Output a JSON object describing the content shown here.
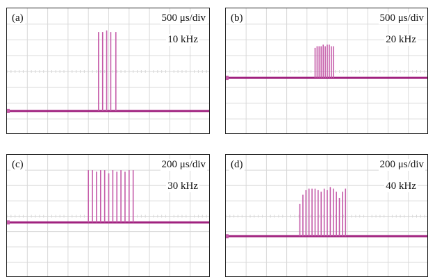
{
  "colors": {
    "trace": "#a0227f",
    "pulse": "#c45aa8",
    "grid": "#d8d8d8",
    "frame": "#222222"
  },
  "chart_data": [
    {
      "type": "line",
      "label": "(a)",
      "timebase": "500 μs/div",
      "frequency": "10 kHz",
      "xlim": [
        0,
        10
      ],
      "ylim": [
        0,
        8
      ],
      "baseline": 1.5,
      "grid": true,
      "pulses": [
        {
          "x": 4.5,
          "peak": 6.5
        },
        {
          "x": 4.7,
          "peak": 6.5
        },
        {
          "x": 4.9,
          "peak": 6.6
        },
        {
          "x": 5.1,
          "peak": 6.5
        },
        {
          "x": 5.35,
          "peak": 6.5
        }
      ]
    },
    {
      "type": "line",
      "label": "(b)",
      "timebase": "500 μs/div",
      "frequency": "20 kHz",
      "xlim": [
        0,
        10
      ],
      "ylim": [
        0,
        8
      ],
      "baseline": 3.6,
      "grid": true,
      "pulses": [
        {
          "x": 4.4,
          "peak": 5.5
        },
        {
          "x": 4.5,
          "peak": 5.6
        },
        {
          "x": 4.6,
          "peak": 5.6
        },
        {
          "x": 4.7,
          "peak": 5.6
        },
        {
          "x": 4.8,
          "peak": 5.7
        },
        {
          "x": 4.9,
          "peak": 5.6
        },
        {
          "x": 5.0,
          "peak": 5.7
        },
        {
          "x": 5.1,
          "peak": 5.7
        },
        {
          "x": 5.2,
          "peak": 5.6
        },
        {
          "x": 5.3,
          "peak": 5.6
        }
      ]
    },
    {
      "type": "line",
      "label": "(c)",
      "timebase": "200 μs/div",
      "frequency": "30 kHz",
      "xlim": [
        0,
        10
      ],
      "ylim": [
        0,
        8
      ],
      "baseline": 3.6,
      "grid": true,
      "pulses": [
        {
          "x": 4.0,
          "peak": 7.0
        },
        {
          "x": 4.2,
          "peak": 7.0
        },
        {
          "x": 4.4,
          "peak": 6.9
        },
        {
          "x": 4.6,
          "peak": 7.0
        },
        {
          "x": 4.8,
          "peak": 7.0
        },
        {
          "x": 5.0,
          "peak": 6.8
        },
        {
          "x": 5.2,
          "peak": 7.0
        },
        {
          "x": 5.4,
          "peak": 6.9
        },
        {
          "x": 5.6,
          "peak": 7.0
        },
        {
          "x": 5.8,
          "peak": 6.9
        },
        {
          "x": 6.0,
          "peak": 7.0
        },
        {
          "x": 6.2,
          "peak": 7.0
        }
      ]
    },
    {
      "type": "line",
      "label": "(d)",
      "timebase": "200 μs/div",
      "frequency": "40 kHz",
      "xlim": [
        0,
        10
      ],
      "ylim": [
        0,
        8
      ],
      "baseline": 2.7,
      "grid": true,
      "pulses": [
        {
          "x": 3.65,
          "peak": 4.8
        },
        {
          "x": 3.8,
          "peak": 5.4
        },
        {
          "x": 3.95,
          "peak": 5.7
        },
        {
          "x": 4.1,
          "peak": 5.8
        },
        {
          "x": 4.25,
          "peak": 5.8
        },
        {
          "x": 4.4,
          "peak": 5.8
        },
        {
          "x": 4.55,
          "peak": 5.7
        },
        {
          "x": 4.7,
          "peak": 5.6
        },
        {
          "x": 4.85,
          "peak": 5.8
        },
        {
          "x": 5.0,
          "peak": 5.7
        },
        {
          "x": 5.15,
          "peak": 5.9
        },
        {
          "x": 5.3,
          "peak": 5.8
        },
        {
          "x": 5.45,
          "peak": 5.6
        },
        {
          "x": 5.6,
          "peak": 5.2
        },
        {
          "x": 5.75,
          "peak": 5.6
        },
        {
          "x": 5.9,
          "peak": 5.8
        }
      ]
    }
  ]
}
